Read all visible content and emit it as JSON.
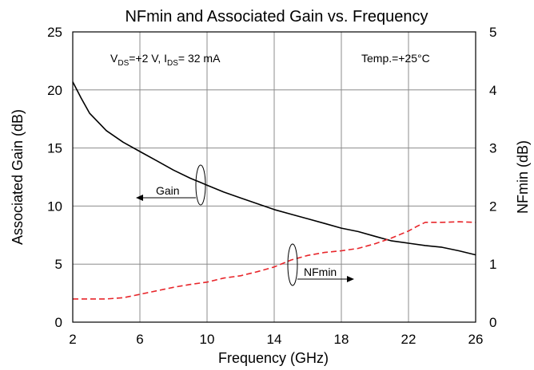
{
  "chart_data": {
    "type": "line",
    "title": "NFmin and Associated Gain vs. Frequency",
    "xlabel": "Frequency (GHz)",
    "ylabel_left": "Associated Gain (dB)",
    "ylabel_right": "NFmin (dB)",
    "xlim": [
      2,
      26
    ],
    "ylim_left": [
      0,
      25
    ],
    "ylim_right": [
      0,
      5
    ],
    "x_ticks": [
      2,
      6,
      10,
      14,
      18,
      22,
      26
    ],
    "y_ticks_left": [
      0,
      5,
      10,
      15,
      20,
      25
    ],
    "y_ticks_right": [
      0,
      1,
      2,
      3,
      4,
      5
    ],
    "grid": true,
    "series": [
      {
        "name": "Gain",
        "axis": "left",
        "color": "#000000",
        "style": "solid",
        "x": [
          2,
          2.5,
          3,
          4,
          5,
          6,
          7,
          8,
          9,
          10,
          11,
          12,
          13,
          14,
          15,
          16,
          17,
          18,
          19,
          20,
          21,
          22,
          23,
          24,
          25,
          26
        ],
        "y": [
          20.7,
          19.3,
          18.0,
          16.5,
          15.5,
          14.7,
          13.9,
          13.1,
          12.4,
          11.8,
          11.2,
          10.7,
          10.2,
          9.7,
          9.3,
          8.9,
          8.5,
          8.1,
          7.8,
          7.4,
          7.0,
          6.8,
          6.6,
          6.45,
          6.15,
          5.8
        ]
      },
      {
        "name": "NFmin",
        "axis": "right",
        "color": "#e8262b",
        "style": "dashed",
        "x": [
          2,
          3,
          4,
          5,
          6,
          7,
          8,
          9,
          10,
          11,
          12,
          13,
          14,
          15,
          16,
          17,
          18,
          19,
          20,
          21,
          22,
          22.5,
          23,
          23.5,
          24,
          25,
          26
        ],
        "y": [
          0.4,
          0.4,
          0.4,
          0.42,
          0.48,
          0.54,
          0.6,
          0.65,
          0.69,
          0.76,
          0.8,
          0.87,
          0.95,
          1.07,
          1.15,
          1.2,
          1.23,
          1.27,
          1.35,
          1.45,
          1.57,
          1.65,
          1.72,
          1.72,
          1.72,
          1.73,
          1.72
        ]
      }
    ],
    "annotations": {
      "bias": {
        "v_main": "V",
        "v_sub": "DS",
        "v_rest": "=+2 V, I",
        "i_sub": "DS",
        "i_rest": "= 32 mA"
      },
      "temp": "Temp.=+25°C",
      "gain_label": "Gain",
      "nfmin_label": "NFmin"
    }
  }
}
